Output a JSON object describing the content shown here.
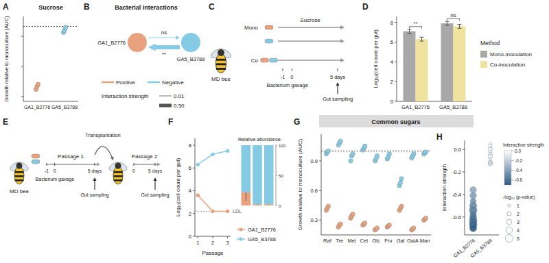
{
  "panel_labels": [
    "A",
    "B",
    "C",
    "D",
    "E",
    "F",
    "G",
    "H"
  ],
  "chart_data": [
    {
      "type": "scatter",
      "title": "Sucrose",
      "y_label": "Growth relative to monoculture (AUC)",
      "categories": [
        "GA1_B2776",
        "GA5_B3788"
      ],
      "values": [
        [
          0.37,
          0.4,
          0.42
        ],
        [
          0.94,
          0.96,
          0.99
        ]
      ],
      "colors": [
        "#e9a27e",
        "#86cbe6"
      ],
      "ylim": [
        0.25,
        1.1
      ],
      "yticks": [
        0.3,
        0.6,
        0.9
      ],
      "tick_labels": "x",
      "reference_line": 1
    },
    {
      "type": "bar",
      "y_label": "Log₁₀(cell count per gut)",
      "categories": [
        "GA1_B2776",
        "GA5_B3788"
      ],
      "series": [
        {
          "name": "Mono-inoculation",
          "color": "#a8a8a8",
          "values": [
            7.1,
            7.9
          ],
          "errors": [
            0.2,
            0.2
          ]
        },
        {
          "name": "Co-inoculation",
          "color": "#f0e3a0",
          "values": [
            6.3,
            7.6
          ],
          "errors": [
            0.2,
            0.2
          ]
        }
      ],
      "significance": [
        "**",
        "ns"
      ],
      "legend_title": "Method",
      "legend": "right",
      "ylim": [
        0,
        8.6
      ],
      "yticks": [
        0,
        2,
        4,
        6,
        8
      ]
    },
    {
      "type": "line",
      "x_label": "Passage",
      "y_label": "Log₁₀(cell count per gut)",
      "x": [
        1,
        2,
        3
      ],
      "xlim": [
        0.8,
        3.2
      ],
      "xticks": [
        1,
        2,
        3
      ],
      "series": [
        {
          "name": "GA1_B2776",
          "color": "#e9a27e",
          "values": [
            3.6,
            2.2,
            2.2
          ]
        },
        {
          "name": "GA5_B3788",
          "color": "#86cbe6",
          "values": [
            6.3,
            7.2,
            7.5
          ]
        }
      ],
      "marker": "circle",
      "legend": "bottom right",
      "ylim": [
        0,
        8.6
      ],
      "yticks": [
        0,
        2,
        4,
        6,
        8
      ],
      "ldl": {
        "label": "LDL",
        "value": 2.2
      },
      "inset": {
        "type": "bar",
        "stacked": true,
        "title": "Relative abundance",
        "categories": [
          null,
          null,
          null
        ],
        "series": [
          {
            "color": "#e9a27e",
            "values": [
              22,
              2,
              2
            ],
            "errors": [
              15,
              1,
              1
            ]
          },
          {
            "color": "#86cbe6",
            "values": [
              78,
              98,
              98
            ]
          }
        ],
        "ylim": [
          0,
          100
        ],
        "yticks": [
          0,
          50,
          100
        ]
      }
    },
    {
      "type": "scatter",
      "header": "Common sugars",
      "y_label": "Growth relative to monoculture (AUC)",
      "categories": [
        "Raf",
        "Tre",
        "Mel",
        "Cel",
        "Glc",
        "Fru",
        "Gal",
        "GalA",
        "Man"
      ],
      "series": [
        {
          "color": "#e9a27e",
          "values": [
            [
              0.4,
              0.42,
              0.44
            ],
            [
              0.23,
              0.25,
              0.26
            ],
            [
              0.32,
              0.34,
              0.36
            ],
            [
              0.25,
              0.26,
              0.27
            ],
            [
              0.2,
              0.21,
              0.22
            ],
            [
              0.23,
              0.24,
              0.25
            ],
            [
              0.4,
              0.42,
              0.44
            ],
            [
              0.2,
              0.21,
              0.22
            ],
            [
              0.3,
              0.31,
              0.32
            ]
          ]
        },
        {
          "color": "#86cbe6",
          "values": [
            [
              0.97,
              0.99,
              1.0
            ],
            [
              1.06,
              1.08,
              1.1
            ],
            [
              0.9,
              0.95,
              0.97
            ],
            [
              1.01,
              1.03,
              1.05
            ],
            [
              0.9,
              0.92,
              0.95
            ],
            [
              0.92,
              0.94,
              0.97
            ],
            [
              0.65,
              0.68,
              0.72
            ],
            [
              0.93,
              0.95,
              0.97
            ],
            [
              0.97,
              0.98,
              0.99
            ]
          ]
        }
      ],
      "ylim": [
        0.15,
        1.17
      ],
      "yticks": [
        0.3,
        0.6,
        0.9
      ],
      "reference_line": 1
    },
    {
      "type": "scatter",
      "y_label": "Interaction strength",
      "categories": [
        "GA1_B2776",
        "GA5_B3788"
      ],
      "values": [
        [
          -0.36,
          -0.41,
          -0.46,
          -0.5,
          -0.54,
          -0.58,
          -0.61,
          -0.64,
          -0.67,
          -0.7
        ],
        [
          0.05,
          0.03,
          0.01,
          0,
          -0.02,
          -0.04,
          -0.06,
          -0.09,
          -0.12,
          -0.13
        ]
      ],
      "sizes": [
        [
          4,
          4,
          3.5,
          4.5,
          5,
          4,
          4.5,
          5,
          5,
          4.5
        ],
        [
          1,
          1.5,
          1,
          2,
          1,
          1.5,
          2,
          1,
          2.5,
          1.5
        ]
      ],
      "ylim": [
        -0.76,
        0.08
      ],
      "yticks": [
        {
          "value": 0,
          "label": "0.0"
        },
        -0.2,
        -0.4,
        -0.6
      ],
      "colorbar": {
        "title": "Interaction strength",
        "range": [
          -0.7,
          0
        ],
        "ticks": [
          {
            "value": 0,
            "label": "0.0"
          },
          -0.2,
          -0.4,
          -0.6
        ],
        "colors": [
          "#2d5b86",
          "#ffffff"
        ]
      },
      "size_legend": {
        "title": "-log₁₀ (p-value)",
        "values": [
          1,
          2,
          3,
          4,
          5
        ]
      }
    }
  ],
  "diagrams": {
    "B": {
      "title": "Bacterial interactions",
      "nodes": [
        {
          "label": "GA1_B2776",
          "color": "#e9a27e"
        },
        {
          "label": "GA5_B3788",
          "color": "#86cbe6"
        }
      ],
      "edges": [
        {
          "from": 1,
          "to": 0,
          "strength": 0.6,
          "sign": "Negative",
          "label": "**"
        },
        {
          "from": 0,
          "to": 1,
          "strength": 0.02,
          "sign": "Negative",
          "label": "ns"
        }
      ],
      "legend": {
        "signs": [
          {
            "label": "Positive",
            "color": "#e9a27e"
          },
          {
            "label": "Negative",
            "color": "#86cbe6"
          }
        ],
        "strength_title": "Interaction strength",
        "strengths": [
          0.01,
          {
            "value": 0.5,
            "label": "0.50"
          }
        ]
      }
    },
    "C": {
      "bee_label": "MD bee",
      "medium": "Sucrose",
      "strain_colors": [
        "#e9a27e",
        "#86cbe6"
      ],
      "groups": [
        {
          "label": "Mono",
          "rows": [
            [
              0
            ],
            [
              1
            ]
          ]
        },
        {
          "label": "Co",
          "rows": [
            [
              0,
              1
            ]
          ]
        }
      ],
      "ticks": [
        -1,
        0,
        {
          "value": 5,
          "label": "5 days"
        }
      ],
      "gavage_label": "Bacterium gavage",
      "sampling_label": "Gut sampling"
    },
    "E": {
      "bee_label": "MD bee",
      "gavage_label": "Bacterium gavage",
      "transplant_label": "Transplantation",
      "strain_colors": [
        "#e9a27e",
        "#86cbe6"
      ],
      "passages": [
        {
          "label": "Passage 1",
          "ticks": [
            -1,
            0,
            {
              "value": 5,
              "label": "5 days"
            }
          ],
          "sampling_label": "Gut sampling"
        },
        {
          "label": "Passage 2",
          "ticks": [
            0,
            {
              "value": 5,
              "label": "5 days"
            }
          ],
          "sampling_label": "Gut sampling"
        }
      ]
    }
  }
}
